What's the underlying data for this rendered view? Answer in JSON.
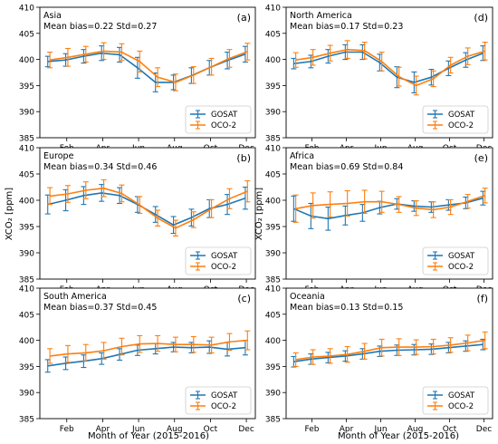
{
  "figure": {
    "shared_xlabel": "Month of Year (2015-2016)",
    "shared_ylabel": "XCO₂ [ppm]",
    "colors": {
      "GOSAT": "#1f77b4",
      "OCO-2": "#ff7f0e"
    },
    "x_tick_labels": [
      "Feb",
      "Apr",
      "Jun",
      "Aug",
      "Oct",
      "Dec"
    ],
    "x_tick_months": [
      2,
      4,
      6,
      8,
      10,
      12
    ],
    "y_ticks": [
      385,
      390,
      395,
      400,
      405,
      410
    ]
  },
  "chart_data": [
    {
      "type": "line",
      "panel_label": "(a)",
      "region": "Asia",
      "stats": "Mean bias=0.22 Std=0.27",
      "ylim": [
        385,
        410
      ],
      "x": [
        1,
        2,
        3,
        4,
        5,
        6,
        7,
        8,
        9,
        10,
        11,
        12
      ],
      "legend": [
        "GOSAT",
        "OCO-2"
      ],
      "legend_position": "lower-right",
      "series": [
        {
          "name": "GOSAT",
          "values": [
            399.6,
            399.9,
            400.6,
            401.2,
            400.9,
            398.4,
            395.6,
            395.6,
            396.9,
            398.4,
            399.8,
            401.0
          ],
          "err": [
            1.0,
            1.2,
            1.3,
            1.4,
            1.4,
            2.0,
            1.8,
            1.4,
            1.5,
            1.4,
            1.6,
            1.5
          ]
        },
        {
          "name": "OCO-2",
          "values": [
            399.9,
            400.4,
            401.0,
            401.6,
            401.4,
            399.6,
            396.6,
            395.6,
            397.0,
            398.6,
            400.2,
            401.5
          ],
          "err": [
            1.5,
            1.7,
            1.5,
            1.6,
            1.6,
            2.0,
            1.8,
            1.6,
            1.6,
            1.6,
            1.7,
            1.6
          ]
        }
      ]
    },
    {
      "type": "line",
      "panel_label": "(d)",
      "region": "North America",
      "stats": "Mean bias=0.17 Std=0.23",
      "ylim": [
        385,
        410
      ],
      "x": [
        1,
        2,
        3,
        4,
        5,
        6,
        7,
        8,
        9,
        10,
        11,
        12
      ],
      "legend": [
        "GOSAT",
        "OCO-2"
      ],
      "legend_position": "lower-right",
      "series": [
        {
          "name": "GOSAT",
          "values": [
            399.2,
            399.6,
            400.6,
            401.4,
            401.4,
            399.4,
            396.6,
            395.6,
            396.6,
            398.3,
            399.9,
            401.2
          ],
          "err": [
            1.0,
            1.2,
            1.3,
            1.4,
            1.4,
            1.6,
            2.0,
            2.0,
            1.5,
            1.4,
            1.4,
            1.4
          ]
        },
        {
          "name": "OCO-2",
          "values": [
            399.9,
            400.4,
            401.2,
            401.9,
            401.7,
            399.6,
            396.7,
            395.0,
            396.3,
            398.9,
            400.6,
            401.6
          ],
          "err": [
            1.4,
            1.5,
            1.5,
            1.7,
            1.6,
            1.8,
            1.8,
            1.8,
            1.5,
            1.5,
            1.6,
            1.7
          ]
        }
      ]
    },
    {
      "type": "line",
      "panel_label": "(b)",
      "region": "Europe",
      "stats": "Mean bias=0.34 Std=0.46",
      "ylim": [
        385,
        410
      ],
      "x": [
        1,
        2,
        3,
        4,
        5,
        6,
        7,
        8,
        9,
        10,
        11,
        12
      ],
      "legend": [
        "GOSAT",
        "OCO-2"
      ],
      "legend_position": "lower-right",
      "series": [
        {
          "name": "GOSAT",
          "values": [
            399.2,
            400.0,
            400.9,
            401.4,
            400.9,
            399.2,
            397.3,
            395.3,
            396.7,
            398.4,
            399.2,
            400.4
          ],
          "err": [
            1.8,
            2.0,
            1.7,
            1.6,
            1.5,
            1.5,
            1.5,
            1.6,
            1.6,
            1.7,
            1.9,
            2.1
          ]
        },
        {
          "name": "OCO-2",
          "values": [
            400.8,
            401.2,
            401.9,
            402.3,
            401.3,
            399.1,
            396.6,
            394.7,
            396.3,
            398.4,
            400.3,
            401.7
          ],
          "err": [
            1.6,
            1.6,
            1.6,
            1.6,
            1.6,
            1.6,
            1.5,
            1.5,
            1.5,
            1.7,
            1.9,
            2.0
          ]
        }
      ]
    },
    {
      "type": "line",
      "panel_label": "(e)",
      "region": "Africa",
      "stats": "Mean bias=0.69 Std=0.84",
      "ylim": [
        385,
        410
      ],
      "x": [
        1,
        2,
        3,
        4,
        5,
        6,
        7,
        8,
        9,
        10,
        11,
        12
      ],
      "legend": [
        "GOSAT",
        "OCO-2"
      ],
      "legend_position": "lower-right",
      "series": [
        {
          "name": "GOSAT",
          "values": [
            398.4,
            397.0,
            396.5,
            397.1,
            397.6,
            398.6,
            399.3,
            398.9,
            398.7,
            399.1,
            399.5,
            400.4
          ],
          "err": [
            2.4,
            2.4,
            2.2,
            1.8,
            1.6,
            1.2,
            1.0,
            1.0,
            1.0,
            1.0,
            1.1,
            1.3
          ]
        },
        {
          "name": "OCO-2",
          "values": [
            398.4,
            399.0,
            399.2,
            399.4,
            399.7,
            399.7,
            399.2,
            398.5,
            398.2,
            398.7,
            399.8,
            400.9
          ],
          "err": [
            2.6,
            2.4,
            2.4,
            2.4,
            2.2,
            2.0,
            1.5,
            1.4,
            1.5,
            1.4,
            1.3,
            1.4
          ]
        }
      ]
    },
    {
      "type": "line",
      "panel_label": "(c)",
      "region": "South America",
      "stats": "Mean bias=0.37 Std=0.45",
      "ylim": [
        385,
        410
      ],
      "x": [
        1,
        2,
        3,
        4,
        5,
        6,
        7,
        8,
        9,
        10,
        11,
        12
      ],
      "legend": [
        "GOSAT",
        "OCO-2"
      ],
      "legend_position": "lower-right",
      "series": [
        {
          "name": "GOSAT",
          "values": [
            395.1,
            395.6,
            396.0,
            396.5,
            397.3,
            398.1,
            398.4,
            398.7,
            398.6,
            398.7,
            398.3,
            398.6
          ],
          "err": [
            1.2,
            1.2,
            1.2,
            1.1,
            1.1,
            1.0,
            1.0,
            0.9,
            1.0,
            1.2,
            1.3,
            1.4
          ]
        },
        {
          "name": "OCO-2",
          "values": [
            397.0,
            397.4,
            397.6,
            398.0,
            398.8,
            399.3,
            399.4,
            399.2,
            399.2,
            399.1,
            399.7,
            400.0
          ],
          "err": [
            1.4,
            1.6,
            1.6,
            1.6,
            1.6,
            1.6,
            1.5,
            1.4,
            1.5,
            1.5,
            1.6,
            1.8
          ]
        }
      ]
    },
    {
      "type": "line",
      "panel_label": "(f)",
      "region": "Oceania",
      "stats": "Mean bias=0.13 Std=0.15",
      "ylim": [
        385,
        410
      ],
      "x": [
        1,
        2,
        3,
        4,
        5,
        6,
        7,
        8,
        9,
        10,
        11,
        12
      ],
      "legend": [
        "GOSAT",
        "OCO-2"
      ],
      "legend_position": "lower-right",
      "series": [
        {
          "name": "GOSAT",
          "values": [
            395.9,
            396.4,
            396.7,
            397.0,
            397.4,
            397.9,
            398.1,
            398.2,
            398.3,
            398.6,
            398.9,
            399.2
          ],
          "err": [
            1.0,
            1.0,
            1.0,
            1.0,
            1.0,
            1.0,
            1.0,
            1.0,
            1.0,
            1.0,
            1.0,
            1.0
          ]
        },
        {
          "name": "OCO-2",
          "values": [
            396.3,
            396.8,
            397.0,
            397.3,
            397.9,
            398.6,
            398.7,
            398.7,
            398.8,
            399.1,
            399.5,
            400.0
          ],
          "err": [
            1.3,
            1.4,
            1.4,
            1.5,
            1.5,
            1.6,
            1.6,
            1.4,
            1.4,
            1.4,
            1.5,
            1.6
          ]
        }
      ]
    }
  ]
}
